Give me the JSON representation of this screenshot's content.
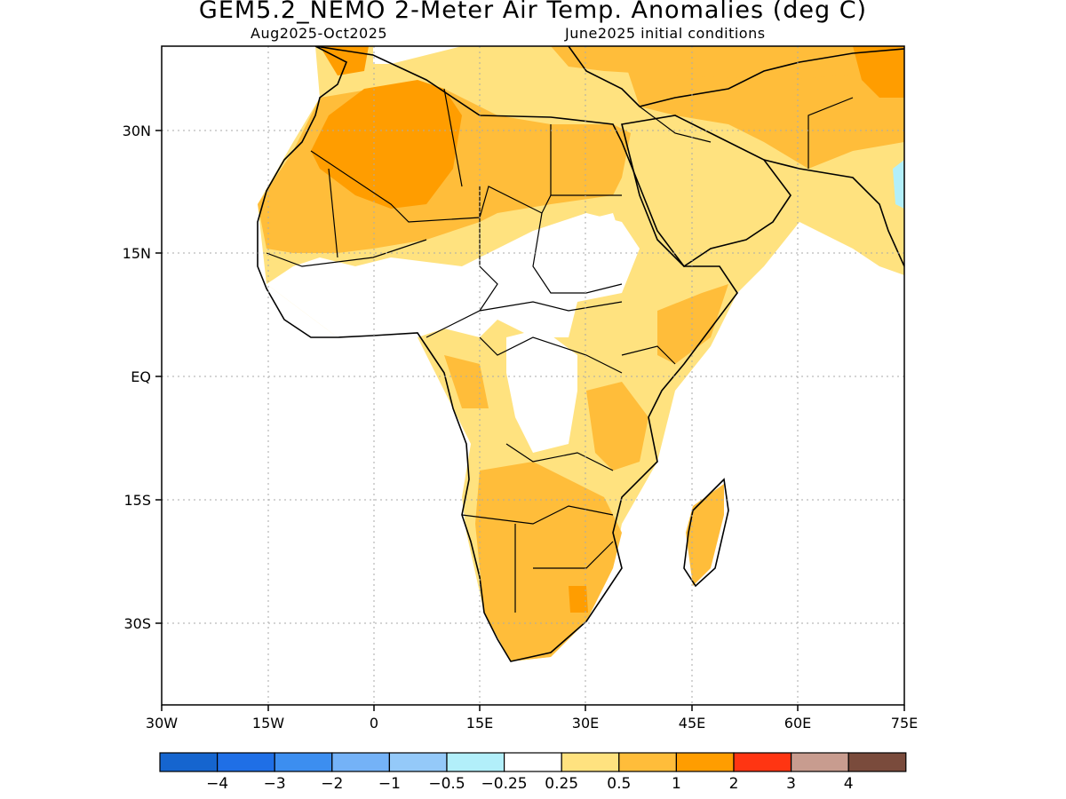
{
  "title": "GEM5.2_NEMO 2-Meter Air Temp. Anomalies (deg C)",
  "period": "Aug2025-Oct2025",
  "init": "June2025 initial conditions",
  "lat_labels": [
    "30N",
    "15N",
    "EQ",
    "15S",
    "30S"
  ],
  "lon_labels": [
    "30W",
    "15W",
    "0",
    "15E",
    "30E",
    "45E",
    "60E",
    "75E"
  ],
  "colorbar": {
    "colors": [
      "#1565cf",
      "#1f6fe6",
      "#3c8ef0",
      "#74b2f7",
      "#94c9f9",
      "#b2effa",
      "#ffffff",
      "#ffe27f",
      "#ffbd3a",
      "#ff9d00",
      "#ff3512",
      "#c89c8f",
      "#7a4b3c"
    ],
    "labels": [
      "−4",
      "−3",
      "−2",
      "−1",
      "−0.5",
      "−0.25",
      "0.25",
      "0.5",
      "1",
      "2",
      "3",
      "4"
    ]
  },
  "anomaly_colors": {
    "light": "#ffe27f",
    "medium": "#ffbd3a",
    "strong": "#ff9d00",
    "cool": "#b2effa"
  }
}
